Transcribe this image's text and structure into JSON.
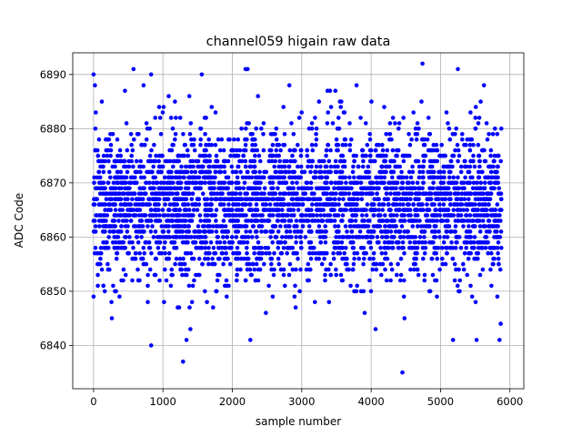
{
  "chart_data": {
    "type": "scatter",
    "title": "channel059 higain raw data",
    "xlabel": "sample number",
    "ylabel": "ADC Code",
    "xlim": [
      -300,
      6200
    ],
    "ylim": [
      6832,
      6894
    ],
    "xticks": [
      0,
      1000,
      2000,
      3000,
      4000,
      5000,
      6000
    ],
    "yticks": [
      6840,
      6850,
      6860,
      6870,
      6880,
      6890
    ],
    "grid": true,
    "marker_color": "#0000ff",
    "series": [
      {
        "n_samples": 5880,
        "x_range": [
          0,
          5880
        ],
        "y_center": 6866,
        "y_spread_sd": 6.8,
        "notable_points": [
          {
            "x": 0,
            "y": 6890
          },
          {
            "x": 20,
            "y": 6888
          },
          {
            "x": 575,
            "y": 6891
          },
          {
            "x": 830,
            "y": 6840
          },
          {
            "x": 830,
            "y": 6890
          },
          {
            "x": 1290,
            "y": 6837
          },
          {
            "x": 1340,
            "y": 6841
          },
          {
            "x": 1560,
            "y": 6890
          },
          {
            "x": 2190,
            "y": 6891
          },
          {
            "x": 2220,
            "y": 6891
          },
          {
            "x": 2260,
            "y": 6841
          },
          {
            "x": 3790,
            "y": 6888
          },
          {
            "x": 4450,
            "y": 6835
          },
          {
            "x": 4740,
            "y": 6892
          },
          {
            "x": 5250,
            "y": 6891
          },
          {
            "x": 5180,
            "y": 6841
          },
          {
            "x": 5520,
            "y": 6841
          },
          {
            "x": 5850,
            "y": 6841
          }
        ]
      }
    ]
  }
}
